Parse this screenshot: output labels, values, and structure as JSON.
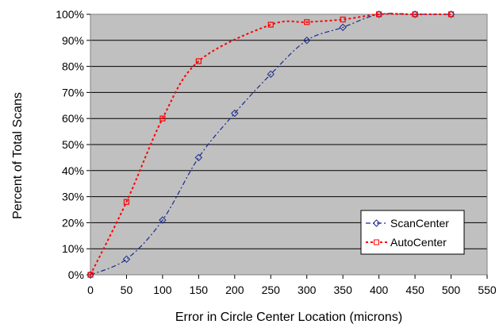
{
  "chart_data": {
    "type": "line",
    "title": "",
    "xlabel": "Error in Circle Center Location (microns)",
    "ylabel": "Percent of Total Scans",
    "xlim": [
      0,
      550
    ],
    "ylim": [
      0,
      100
    ],
    "x_ticks": [
      "0",
      "50",
      "100",
      "150",
      "200",
      "250",
      "300",
      "350",
      "400",
      "450",
      "500",
      "550"
    ],
    "y_ticks": [
      "0%",
      "10%",
      "20%",
      "30%",
      "40%",
      "50%",
      "60%",
      "70%",
      "80%",
      "90%",
      "100%"
    ],
    "x_tick_values": [
      0,
      50,
      100,
      150,
      200,
      250,
      300,
      350,
      400,
      450,
      500,
      550
    ],
    "y_tick_values": [
      0,
      10,
      20,
      30,
      40,
      50,
      60,
      70,
      80,
      90,
      100
    ],
    "grid": "horizontal",
    "legend_position": "bottom-right",
    "plot_background": "#c0c0c0",
    "series": [
      {
        "name": "ScanCenter",
        "color": "#1a2a8c",
        "line_style": "dash-dot",
        "marker": "diamond-open",
        "x": [
          0,
          50,
          100,
          150,
          200,
          250,
          300,
          350,
          400,
          450,
          500
        ],
        "y": [
          0,
          6,
          21,
          45,
          62,
          77,
          90,
          95,
          100,
          100,
          100
        ]
      },
      {
        "name": "AutoCenter",
        "color": "#ff0000",
        "line_style": "dotted",
        "marker": "square-open",
        "x": [
          0,
          50,
          100,
          150,
          250,
          300,
          350,
          400,
          450,
          500
        ],
        "y": [
          0,
          28,
          60,
          82,
          96,
          97,
          98,
          100,
          100,
          100
        ]
      }
    ]
  }
}
